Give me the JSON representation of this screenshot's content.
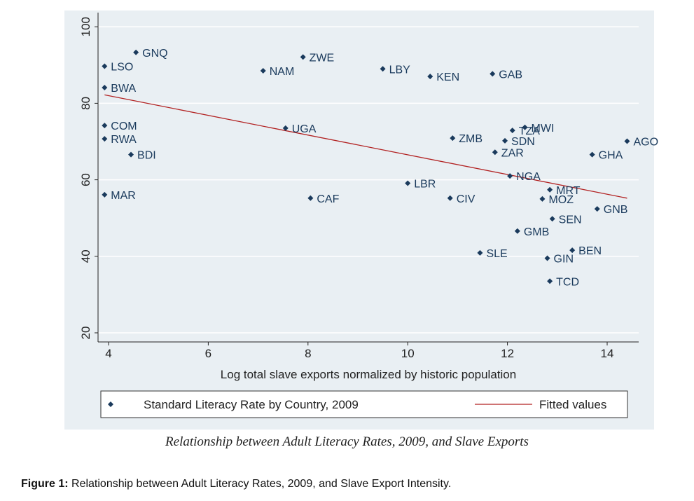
{
  "chart_data": {
    "type": "scatter",
    "xlabel": "Log total slave exports normalized by historic population",
    "ylabel": "",
    "xlim": [
      3.8,
      14.6
    ],
    "ylim": [
      18,
      103
    ],
    "x_ticks": [
      4,
      6,
      8,
      10,
      12,
      14
    ],
    "y_ticks": [
      20,
      40,
      60,
      80,
      100
    ],
    "grid": true,
    "legend": "bottom",
    "series": [
      {
        "name": "Standard Literacy Rate by Country, 2009",
        "points": [
          {
            "label": "GNQ",
            "x": 4.55,
            "y": 93.3
          },
          {
            "label": "LSO",
            "x": 3.92,
            "y": 89.7
          },
          {
            "label": "BWA",
            "x": 3.92,
            "y": 84.1
          },
          {
            "label": "COM",
            "x": 3.92,
            "y": 74.2
          },
          {
            "label": "RWA",
            "x": 3.92,
            "y": 70.7
          },
          {
            "label": "BDI",
            "x": 4.45,
            "y": 66.6
          },
          {
            "label": "MAR",
            "x": 3.92,
            "y": 56.1
          },
          {
            "label": "NAM",
            "x": 7.1,
            "y": 88.5
          },
          {
            "label": "ZWE",
            "x": 7.9,
            "y": 92.1
          },
          {
            "label": "UGA",
            "x": 7.55,
            "y": 73.5
          },
          {
            "label": "CAF",
            "x": 8.05,
            "y": 55.2
          },
          {
            "label": "LBY",
            "x": 9.5,
            "y": 89.0
          },
          {
            "label": "KEN",
            "x": 10.45,
            "y": 87.0
          },
          {
            "label": "LBR",
            "x": 10.0,
            "y": 59.1
          },
          {
            "label": "CIV",
            "x": 10.85,
            "y": 55.2
          },
          {
            "label": "ZMB",
            "x": 10.9,
            "y": 70.9
          },
          {
            "label": "GAB",
            "x": 11.7,
            "y": 87.7
          },
          {
            "label": "MWI",
            "x": 12.35,
            "y": 73.7
          },
          {
            "label": "TZA",
            "x": 12.1,
            "y": 72.9
          },
          {
            "label": "SDN",
            "x": 11.95,
            "y": 70.2
          },
          {
            "label": "ZAR",
            "x": 11.75,
            "y": 67.2
          },
          {
            "label": "NGA",
            "x": 12.05,
            "y": 61.0
          },
          {
            "label": "MRT",
            "x": 12.85,
            "y": 57.4
          },
          {
            "label": "MOZ",
            "x": 12.7,
            "y": 55.0
          },
          {
            "label": "SEN",
            "x": 12.9,
            "y": 49.8
          },
          {
            "label": "GMB",
            "x": 12.2,
            "y": 46.6
          },
          {
            "label": "SLE",
            "x": 11.45,
            "y": 40.9
          },
          {
            "label": "GIN",
            "x": 12.8,
            "y": 39.5
          },
          {
            "label": "BEN",
            "x": 13.3,
            "y": 41.6
          },
          {
            "label": "TCD",
            "x": 12.85,
            "y": 33.5
          },
          {
            "label": "GNB",
            "x": 13.8,
            "y": 52.4
          },
          {
            "label": "GHA",
            "x": 13.7,
            "y": 66.6
          },
          {
            "label": "AGO",
            "x": 14.4,
            "y": 70.1
          }
        ]
      },
      {
        "name": "Fitted values",
        "type": "line",
        "points": [
          {
            "x": 3.92,
            "y": 82.2
          },
          {
            "x": 14.4,
            "y": 55.2
          }
        ]
      }
    ]
  },
  "captions": {
    "chart_caption": "Relationship between Adult Literacy Rates, 2009, and Slave Exports",
    "figure_label": "Figure 1:",
    "figure_text": " Relationship between Adult Literacy Rates, 2009, and Slave Export Intensity."
  },
  "colors": {
    "panel": "#e9eff3",
    "grid": "#ffffff",
    "marker": "#1a3a5c",
    "fit_line": "#b22222",
    "text": "#222222"
  }
}
